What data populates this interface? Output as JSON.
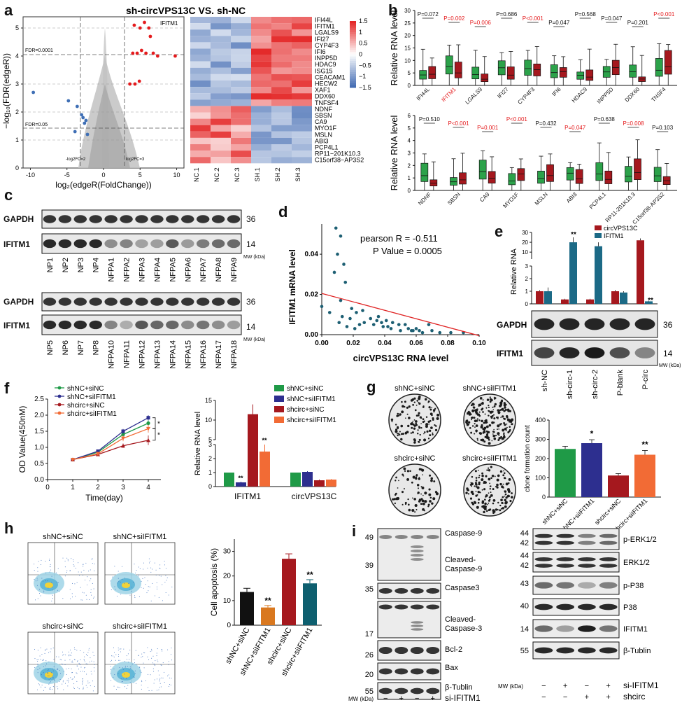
{
  "panels": {
    "a": {
      "label": "a",
      "title": "sh-circVPS13C VS. sh-NC",
      "xlabel": "log₂(edgeR(FoldChange))",
      "ylabel": "−log₁₀(FDR(edgeR))",
      "xticks": [
        "-10",
        "-5",
        "0",
        "5",
        "10"
      ],
      "yticks": [
        "0",
        "1",
        "2",
        "3",
        "4",
        "5"
      ],
      "ann_fdr1": "FDR=0.0001",
      "ann_fdr2": "FDR=0.05",
      "ann_fc_left": "-log2FC=2",
      "ann_fc_right": "log2FC=3",
      "ann_gene": "IFITM1",
      "heat_cols": [
        "NC.1",
        "NC.2",
        "NC.3",
        "SH.1",
        "SH.2",
        "SH.3"
      ],
      "heat_rows": [
        "IFI44L",
        "IFITM1",
        "LGALS9",
        "IFI27",
        "CYP4F3",
        "IFI6",
        "INPP5D",
        "HDAC9",
        "ISG15",
        "CEACAM1",
        "HECW2",
        "XAF1",
        "DDX60",
        "TNFSF4",
        "NDNF",
        "SBSN",
        "CA9",
        "MYO1F",
        "MSLN",
        "ABI3",
        "PCP4L1",
        "RP11−201K10.3",
        "C15orf38−AP3S2"
      ],
      "legend_ticks": [
        "1.5",
        "1",
        "0.5",
        "0",
        "−0.5",
        "−1",
        "−1.5"
      ],
      "colors": {
        "up": "#e41a1c",
        "down": "#3f6fb5",
        "ns": "#b4b4b4"
      }
    },
    "b": {
      "label": "b",
      "ylabel": "Relative RNA level",
      "top": {
        "genes": [
          "IFI44L",
          "IFITM1",
          "LGALS9",
          "IFI27",
          "CYP4F3",
          "IFI6",
          "HDAC9",
          "INPP5D",
          "DDX60",
          "TNSF4"
        ],
        "pvals": [
          "P=0.072",
          "P=0.002",
          "P=0.006",
          "P=0.686",
          "P<0.001",
          "P=0.047",
          "P=0.568",
          "P=0.047",
          "P=0.201",
          "P<0.001"
        ],
        "significant": [
          false,
          true,
          true,
          false,
          true,
          false,
          false,
          false,
          false,
          true
        ],
        "yticks": [
          "0",
          "5",
          "10",
          "15",
          "20",
          "25",
          "30"
        ]
      },
      "bottom": {
        "genes": [
          "NDNF",
          "SBSN",
          "CA9",
          "MYO1F",
          "MSLN",
          "ABI3",
          "PCP4L1",
          "RP11-201K10.3",
          "C15orf38-AP3S2"
        ],
        "pvals": [
          "P=0.510",
          "P<0.001",
          "P=0.001",
          "P<0.001",
          "P=0.432",
          "P=0.047",
          "P=0.638",
          "P=0.008",
          "P=0.103"
        ],
        "significant": [
          false,
          true,
          true,
          true,
          false,
          true,
          false,
          true,
          false
        ],
        "yticks": [
          "0",
          "1",
          "2",
          "3",
          "4",
          "5",
          "6"
        ]
      },
      "colors": {
        "green": "#2ca24a",
        "red": "#a5181e"
      }
    },
    "c": {
      "label": "c",
      "row1": [
        "GAPDH",
        "IFITM1"
      ],
      "lanes1": [
        "NP1",
        "NP2",
        "NP3",
        "NP4",
        "NFPA1",
        "NFPA2",
        "NFPA3",
        "NFPA4",
        "NFPA5",
        "NFPA6",
        "NFPA7",
        "NFPA8",
        "NFPA9"
      ],
      "lanes2": [
        "NP5",
        "NP6",
        "NP7",
        "NP8",
        "NFPA10",
        "NFPA11",
        "NFPA12",
        "NFPA13",
        "NFPA14",
        "NFPA15",
        "NFPA16",
        "NFPA17",
        "NFPA18"
      ],
      "mw_gapdh": "36",
      "mw_ifitm1": "14",
      "mw_unit": "MW (kDa)"
    },
    "d": {
      "label": "d",
      "ann1": "pearson R = -0.511",
      "ann2": "P Value = 0.0005",
      "xlabel": "circVPS13C RNA level",
      "ylabel": "IFITM1 mRNA level",
      "xticks": [
        "0.00",
        "0.02",
        "0.04",
        "0.06",
        "0.08",
        "0.10"
      ],
      "yticks": [
        "0.00",
        "0.02",
        "0.04"
      ],
      "colors": {
        "point": "#1d5f73",
        "line": "#e02525"
      }
    },
    "e": {
      "label": "e",
      "ylabel": "Relative RNA",
      "legend": [
        "circVPS13C",
        "IFITM1"
      ],
      "categories": [
        "sh-NC",
        "sh-circ-1",
        "sh-circ-2",
        "P-blank",
        "P-circ"
      ],
      "yticks": [
        "0",
        "1",
        "2",
        "3",
        "10",
        "20",
        "30"
      ],
      "stars": [
        "**",
        "**",
        "**"
      ],
      "blots": [
        "GAPDH",
        "IFITM1"
      ],
      "mw": [
        "36",
        "14"
      ],
      "mw_unit": "MW (kDa)",
      "colors": {
        "circ": "#a5181e",
        "ifitm": "#1c6a86"
      }
    },
    "f": {
      "label": "f",
      "legend": [
        "shNC+siNC",
        "shNC+siIFITM1",
        "shcirc+siNC",
        "shcirc+siIFITM1"
      ],
      "ylabel": "OD Value(450nM)",
      "xlabel": "Time(day)",
      "xticks": [
        "0",
        "1",
        "2",
        "3",
        "4"
      ],
      "yticks": [
        "0.0",
        "0.5",
        "1.0",
        "1.5",
        "2.0",
        "2.5"
      ],
      "stars": [
        "*",
        "*"
      ],
      "bar_ylabel": "Relative RNA level",
      "bar_yticks": [
        "0",
        "1",
        "2",
        "3",
        "5",
        "10",
        "15"
      ],
      "bar_categories": [
        "IFITM1",
        "circVPS13C"
      ],
      "bar_stars": [
        "**",
        "**"
      ],
      "colors": {
        "s1": "#1f9a47",
        "s2": "#2d2f8f",
        "s3": "#a5181e",
        "s4": "#f26b35"
      }
    },
    "g": {
      "label": "g",
      "plates": [
        "shNC+siNC",
        "shNC+siIFITM1",
        "shcirc+siNC",
        "shcirc+siIFITM1"
      ],
      "ylabel": "clone formation count",
      "yticks": [
        "0",
        "100",
        "200",
        "300",
        "400"
      ],
      "categories": [
        "shNC+siNC",
        "shNC+siIFITM1",
        "shcirc+siNC",
        "shcirc+siIFITM1"
      ],
      "stars": [
        "*",
        "**"
      ]
    },
    "h": {
      "label": "h",
      "plots": [
        "shNC+siNC",
        "shNC+siIFITM1",
        "shcirc+siNC",
        "shcirc+siIFITM1"
      ],
      "ylabel": "Cell apoptosis (%)",
      "yticks": [
        "0",
        "10",
        "20",
        "30"
      ],
      "categories": [
        "shNC+siNC",
        "shNC+siIFITM1",
        "shcirc+siNC",
        "shcirc+siIFITM1"
      ],
      "stars": [
        "**",
        "**"
      ],
      "colors": {
        "b1": "#111111",
        "b2": "#d9781f",
        "b3": "#a5181e",
        "b4": "#0e5f6f"
      }
    },
    "i": {
      "label": "i",
      "left_blots": [
        "Caspase-9",
        "Cleaved-Caspase-9",
        "Caspase3",
        "Cleaved-Caspase-3",
        "Bcl-2",
        "Bax",
        "β-Tublin"
      ],
      "left_mw": [
        "49",
        "39",
        "35",
        "17",
        "26",
        "20",
        "55"
      ],
      "right_blots": [
        "p-ERK1/2",
        "ERK1/2",
        "p-P38",
        "P38",
        "IFITM1",
        "β-Tublin"
      ],
      "right_mw": [
        "44",
        "42",
        "44",
        "42",
        "43",
        "40",
        "14",
        "55"
      ],
      "mw_unit": "MW (kDa)",
      "si_label": "si-IFITM1",
      "sh_label": "shcirc",
      "si_signs": [
        "−",
        "+",
        "−",
        "+"
      ],
      "sh_signs": [
        "−",
        "−",
        "+",
        "+"
      ]
    }
  },
  "chart_data": [
    {
      "type": "scatter",
      "panel": "a",
      "title": "sh-circVPS13C VS. sh-NC",
      "xlabel": "log₂(edgeR(FoldChange))",
      "ylabel": "−log₁₀(FDR(edgeR))",
      "xlim": [
        -11,
        11
      ],
      "ylim": [
        0,
        5.4
      ],
      "series": [
        {
          "name": "up",
          "x": [
            4.2,
            5.0,
            5.6,
            6.2,
            6.4,
            4.0,
            4.6,
            5.2,
            5.8,
            6.8,
            7.4,
            9.8,
            3.6,
            4.3,
            4.9
          ],
          "y": [
            5.1,
            5.0,
            5.2,
            5.0,
            4.7,
            4.1,
            4.1,
            4.2,
            4.1,
            4.1,
            4.0,
            4.0,
            3.0,
            3.0,
            3.1
          ]
        },
        {
          "name": "down",
          "x": [
            -9.6,
            -4.8,
            -3.6,
            -3.0,
            -2.8,
            -2.4,
            -2.6,
            -3.9,
            -2.2
          ],
          "y": [
            2.7,
            2.4,
            2.2,
            1.9,
            1.8,
            1.7,
            1.6,
            1.3,
            1.2
          ]
        }
      ]
    },
    {
      "type": "scatter",
      "panel": "d",
      "xlabel": "circVPS13C RNA level",
      "ylabel": "IFITM1 mRNA level",
      "xlim": [
        0,
        0.1
      ],
      "ylim": [
        0,
        0.055
      ],
      "x": [
        0.009,
        0.012,
        0.01,
        0.014,
        0.008,
        0.015,
        0.012,
        0.019,
        0.022,
        0.026,
        0.031,
        0.035,
        0.038,
        0.041,
        0.045,
        0.049,
        0.055,
        0.058,
        0.06,
        0.062,
        0.064,
        0.07,
        0.075,
        0.082,
        0.09,
        0.005,
        0.011,
        0.016,
        0.021,
        0.027,
        0.033,
        0.039,
        0.044,
        0.05,
        0.057,
        0.068,
        0.0,
        0.013,
        0.018,
        0.024,
        0.036,
        0.042,
        0.053
      ],
      "y": [
        0.053,
        0.049,
        0.04,
        0.035,
        0.031,
        0.026,
        0.017,
        0.013,
        0.011,
        0.012,
        0.008,
        0.007,
        0.006,
        0.007,
        0.006,
        0.005,
        0.003,
        0.002,
        0.003,
        0.002,
        0.001,
        0.002,
        0.001,
        0.001,
        0.001,
        0.011,
        0.006,
        0.004,
        0.003,
        0.006,
        0.005,
        0.004,
        0.003,
        0.002,
        0.002,
        0.005,
        0.014,
        0.009,
        0.008,
        0.005,
        0.009,
        0.004,
        0.005
      ],
      "fit": {
        "x": [
          0.0,
          0.1
        ],
        "y": [
          0.0205,
          -0.0005
        ]
      }
    },
    {
      "type": "bar",
      "panel": "e",
      "categories": [
        "sh-NC",
        "sh-circ-1",
        "sh-circ-2",
        "P-blank",
        "P-circ"
      ],
      "series": [
        {
          "name": "circVPS13C",
          "values": [
            1.0,
            0.35,
            0.35,
            1.0,
            22
          ],
          "err": [
            0.08,
            0.05,
            0.05,
            0.1,
            2
          ]
        },
        {
          "name": "IFITM1",
          "values": [
            1.0,
            20,
            16,
            0.9,
            0.2
          ],
          "err": [
            0.3,
            5,
            4,
            0.1,
            0.05
          ]
        }
      ]
    },
    {
      "type": "line",
      "panel": "f",
      "xlabel": "Time(day)",
      "ylabel": "OD Value(450nM)",
      "x": [
        1,
        2,
        3,
        4
      ],
      "ylim": [
        0,
        2.5
      ],
      "series": [
        {
          "name": "shNC+siNC",
          "values": [
            0.62,
            0.85,
            1.4,
            1.75
          ],
          "err": [
            0.03,
            0.05,
            0.08,
            0.09
          ]
        },
        {
          "name": "shNC+siIFITM1",
          "values": [
            0.62,
            0.88,
            1.5,
            1.92
          ],
          "err": [
            0.03,
            0.04,
            0.07,
            0.08
          ]
        },
        {
          "name": "shcirc+siNC",
          "values": [
            0.62,
            0.78,
            1.05,
            1.22
          ],
          "err": [
            0.03,
            0.05,
            0.07,
            0.15
          ]
        },
        {
          "name": "shcirc+siIFITM1",
          "values": [
            0.62,
            0.8,
            1.28,
            1.58
          ],
          "err": [
            0.03,
            0.07,
            0.09,
            0.12
          ]
        }
      ]
    },
    {
      "type": "bar",
      "panel": "f",
      "ylabel": "Relative RNA level",
      "categories": [
        "IFITM1",
        "circVPS13C"
      ],
      "series": [
        {
          "name": "shNC+siNC",
          "values": [
            1.0,
            1.0
          ],
          "err": [
            0,
            0
          ]
        },
        {
          "name": "shNC+siIFITM1",
          "values": [
            0.3,
            1.05
          ],
          "err": [
            0.05,
            0.05
          ]
        },
        {
          "name": "shcirc+siNC",
          "values": [
            11.5,
            0.45
          ],
          "err": [
            2.5,
            0.05
          ]
        },
        {
          "name": "shcirc+siIFITM1",
          "values": [
            2.5,
            0.5
          ],
          "err": [
            0.5,
            0.04
          ]
        }
      ]
    },
    {
      "type": "bar",
      "panel": "g",
      "ylabel": "clone formation count",
      "categories": [
        "shNC+siNC",
        "shNC+siIFITM1",
        "shcirc+siNC",
        "shcirc+siIFITM1"
      ],
      "values": [
        250,
        280,
        112,
        220
      ],
      "err": [
        14,
        18,
        10,
        22
      ],
      "ylim": [
        0,
        400
      ]
    },
    {
      "type": "bar",
      "panel": "h",
      "ylabel": "Cell apoptosis (%)",
      "categories": [
        "shNC+siNC",
        "shNC+siIFITM1",
        "shcirc+siNC",
        "shcirc+siIFITM1"
      ],
      "values": [
        13.5,
        7.2,
        27.0,
        17.0
      ],
      "err": [
        1.5,
        0.8,
        2.0,
        1.5
      ],
      "ylim": [
        0,
        35
      ]
    }
  ]
}
